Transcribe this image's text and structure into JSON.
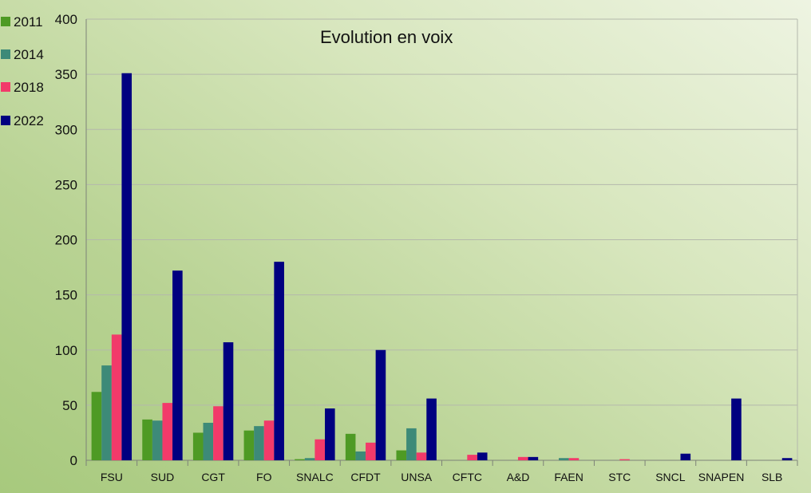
{
  "chart_data": {
    "type": "bar",
    "title": "Evolution en voix",
    "xlabel": "",
    "ylabel": "",
    "ylim": [
      0,
      400
    ],
    "yticks": [
      0,
      50,
      100,
      150,
      200,
      250,
      300,
      350,
      400
    ],
    "grid": true,
    "legend_position": "left",
    "categories": [
      "FSU",
      "SUD",
      "CGT",
      "FO",
      "SNALC",
      "CFDT",
      "UNSA",
      "CFTC",
      "A&D",
      "FAEN",
      "STC",
      "SNCL",
      "SNAPEN",
      "SLB"
    ],
    "series": [
      {
        "name": "2011",
        "color": "#4e9a24",
        "values": [
          62,
          37,
          25,
          27,
          1,
          24,
          9,
          0,
          0,
          0,
          0,
          0,
          0,
          0
        ]
      },
      {
        "name": "2014",
        "color": "#3d8a78",
        "values": [
          86,
          36,
          34,
          31,
          2,
          8,
          29,
          0,
          0,
          2,
          0,
          0,
          0,
          0
        ]
      },
      {
        "name": "2018",
        "color": "#f23a6a",
        "values": [
          114,
          52,
          49,
          36,
          19,
          16,
          7,
          5,
          3,
          2,
          1,
          0,
          0,
          0
        ]
      },
      {
        "name": "2022",
        "color": "#000080",
        "values": [
          351,
          172,
          107,
          180,
          47,
          100,
          56,
          7,
          3,
          0,
          0,
          6,
          56,
          2
        ]
      }
    ]
  },
  "colors": {
    "grid": "#b4b8ac",
    "axis": "#7d8278"
  }
}
